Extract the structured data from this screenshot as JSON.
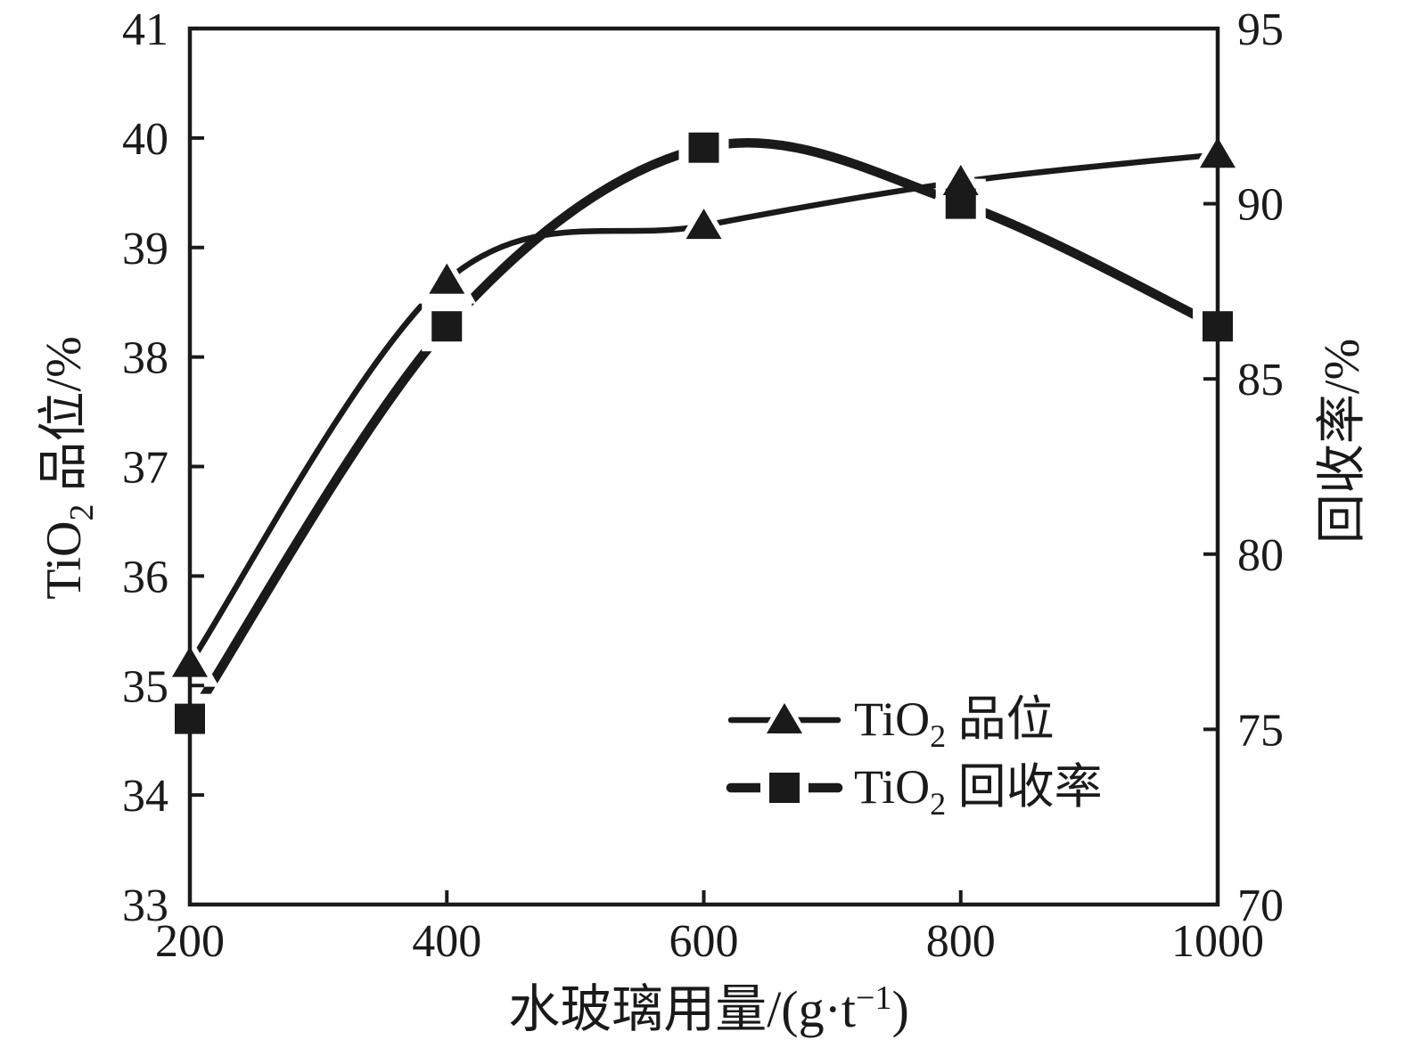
{
  "colors": {
    "ink": "#1a1a1a",
    "background": "#ffffff"
  },
  "chart_data": {
    "type": "line",
    "title": "",
    "x": [
      200,
      400,
      600,
      800,
      1000
    ],
    "x_axis": {
      "label": "水玻璃用量/(g·t⁻¹)",
      "min": 200,
      "max": 1000,
      "ticks": [
        200,
        400,
        600,
        800,
        1000
      ]
    },
    "left_axis": {
      "label": "TiO₂ 品位/%",
      "min": 33,
      "max": 41,
      "ticks": [
        33,
        34,
        35,
        36,
        37,
        38,
        39,
        40,
        41
      ]
    },
    "right_axis": {
      "label": "回收率/%",
      "min": 70,
      "max": 95,
      "ticks": [
        70,
        75,
        80,
        85,
        90,
        95
      ]
    },
    "series": [
      {
        "name": "TiO₂ 品位",
        "axis": "left",
        "marker": "triangle",
        "line": "thin",
        "values": [
          35.2,
          38.7,
          39.2,
          39.6,
          39.85
        ]
      },
      {
        "name": "TiO₂ 回收率",
        "axis": "right",
        "marker": "square",
        "line": "thick",
        "values": [
          75.3,
          86.5,
          91.6,
          90.0,
          86.5
        ]
      }
    ],
    "legend": {
      "position": "inside-bottom-right",
      "entries": [
        "TiO₂ 品位",
        "TiO₂ 回收率"
      ]
    },
    "grid": false
  },
  "labels": {
    "left_title": {
      "prefix": "TiO",
      "sub": "2",
      "rest": " 品位/%"
    },
    "right_title": "回收率/%",
    "x_title": {
      "prefix": "水玻璃用量/(g·t",
      "sup": "−1",
      "suffix": ")"
    },
    "legend": [
      {
        "prefix": "TiO",
        "sub": "2",
        "rest": " 品位"
      },
      {
        "prefix": "TiO",
        "sub": "2",
        "rest": " 回收率"
      }
    ]
  }
}
